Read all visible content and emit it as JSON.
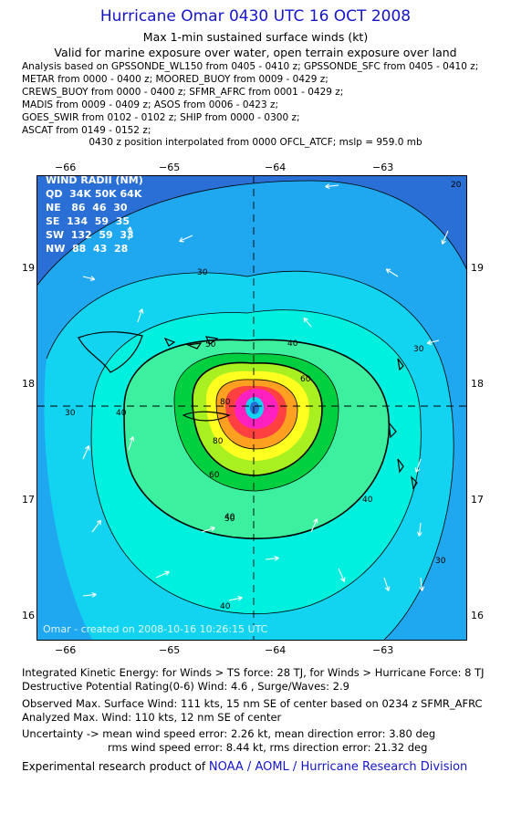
{
  "header": {
    "title": "Hurricane Omar 0430 UTC 16 OCT 2008",
    "subtitle1": "Max 1-min sustained surface winds (kt)",
    "subtitle2": "Valid for marine exposure over water, open terrain exposure over land"
  },
  "analysis_lines": [
    "Analysis based on  GPSSONDE_WL150 from 0405 - 0410 z;  GPSSONDE_SFC from 0405 - 0410 z;",
    "METAR from 0000 - 0400 z;  MOORED_BUOY from 0009 - 0429 z;",
    "CREWS_BUOY from 0000 - 0400 z;  SFMR_AFRC from 0001 - 0429 z;",
    "MADIS from 0009 - 0409 z;  ASOS from 0006 - 0423 z;",
    "GOES_SWIR from 0102 - 0102 z;  SHIP from 0000 - 0300 z;",
    "ASCAT from 0149 - 0152 z;"
  ],
  "position_line": "0430 z position interpolated from 0000 OFCL_ATCF; mslp = 959.0 mb",
  "map": {
    "lon_ticks": [
      "−66",
      "−65",
      "−64",
      "−63"
    ],
    "lat_ticks": [
      "19",
      "18",
      "17",
      "16"
    ],
    "credit": "Omar - created on 2008-10-16 10:26:15 UTC",
    "wind_radii": {
      "title": "WIND RADII (NM)",
      "header": [
        "QD",
        "34K",
        "50K",
        "64K"
      ],
      "rows": [
        [
          "NE",
          "86",
          "46",
          "30"
        ],
        [
          "SE",
          "134",
          "59",
          "35"
        ],
        [
          "SW",
          "132",
          "59",
          "33"
        ],
        [
          "NW",
          "88",
          "43",
          "28"
        ]
      ]
    },
    "contour_labels": [
      "20",
      "30",
      "30",
      "30",
      "30",
      "40",
      "40",
      "40",
      "40",
      "40",
      "50",
      "50",
      "60",
      "60",
      "80",
      "80"
    ],
    "colors": {
      "c20": "#2a6fd6",
      "c30": "#1fa8ef",
      "c40": "#13d4f0",
      "c50": "#00f0e0",
      "c60": "#3cf0a0",
      "c70": "#00d040",
      "c80": "#a8f020",
      "c90": "#ffff20",
      "c100": "#ffa020",
      "c110": "#ff4040",
      "c120": "#ff20c0",
      "c130": "#c020e0"
    }
  },
  "footer": {
    "ike": "Integrated Kinetic Energy:  for Winds > TS force: 28 TJ,  for Winds > Hurricane Force: 8 TJ",
    "dpr": "Destructive Potential Rating(0-6)   Wind: 4.6 , Surge/Waves: 2.9",
    "observed": "Observed Max. Surface Wind: 111 kts, 15 nm SE of center based on 0234 z SFMR_AFRC",
    "analyzed": "Analyzed Max. Wind: 110 kts, 12 nm SE of center",
    "uncert1": "Uncertainty -> mean wind speed error: 2.26 kt,   mean direction error: 3.80 deg",
    "uncert2": "rms wind speed error: 8.44 kt,   rms direction error: 21.32 deg",
    "product_prefix": "Experimental research product of ",
    "product_org": "NOAA / AOML / Hurricane Research Division"
  }
}
